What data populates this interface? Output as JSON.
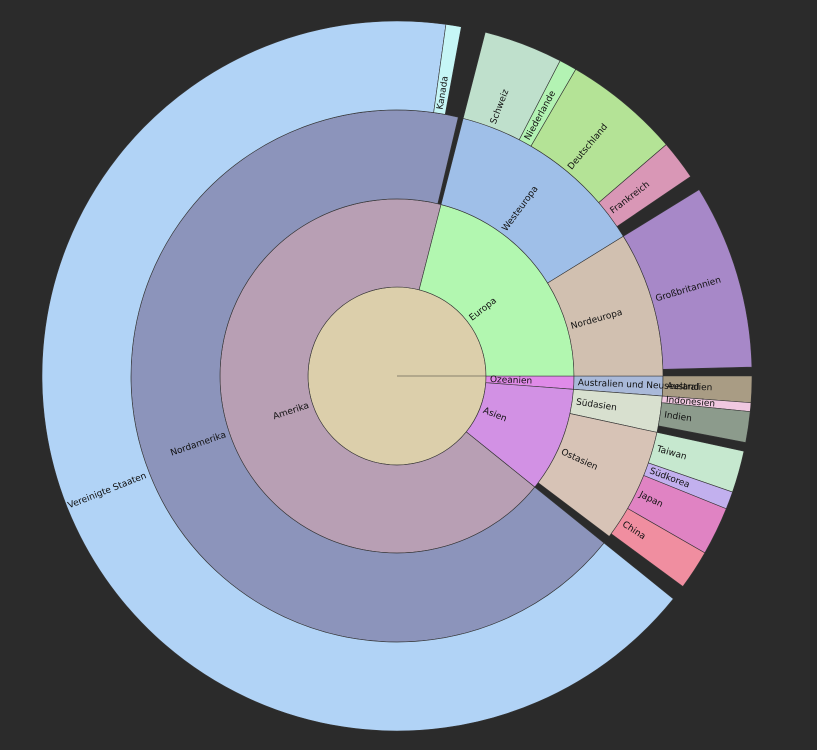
{
  "chart_data": {
    "type": "sunburst",
    "nodes": [
      {
        "name": "Ozeanien",
        "value": 1.2,
        "color": "#e08be8",
        "children": [
          {
            "name": "Australien und Neuseeland",
            "value": 1.2,
            "color": "#a9b9d9",
            "children": [
              {
                "name": "Australien",
                "value": 1.2,
                "color": "#a99c84"
              }
            ]
          }
        ]
      },
      {
        "name": "Asien",
        "value": 9.6,
        "color": "#d291e4",
        "children": [
          {
            "name": "Südasien",
            "value": 2.2,
            "color": "#d8e0cf",
            "children": [
              {
                "name": "Indonesien",
                "value": 0.4,
                "color": "#f0c8e0"
              },
              {
                "name": "Indien",
                "value": 1.4,
                "color": "#8c9b8c"
              }
            ]
          },
          {
            "name": "Ostasien",
            "value": 6.9,
            "color": "#d7c3b6",
            "children": [
              {
                "name": "Taiwan",
                "value": 1.9,
                "color": "#c6e8cf"
              },
              {
                "name": "Südkorea",
                "value": 0.8,
                "color": "#c2b0ee"
              },
              {
                "name": "Japan",
                "value": 2.2,
                "color": "#e083c3"
              },
              {
                "name": "China",
                "value": 1.8,
                "color": "#f08ea0"
              }
            ]
          }
        ]
      },
      {
        "name": "Amerika",
        "value": 68.2,
        "color": "#b89fb4",
        "children": [
          {
            "name": "Nordamerika",
            "value": 67.9,
            "color": "#8c94bb",
            "children": [
              {
                "name": "Vereinigte Staaten",
                "value": 66.4,
                "color": "#b1d3f6"
              },
              {
                "name": "Kanada",
                "value": 0.7,
                "color": "#c6f6f6"
              }
            ]
          }
        ]
      },
      {
        "name": "Europa",
        "value": 21.0,
        "color": "#b2f7b0",
        "children": [
          {
            "name": "Westeuropa",
            "value": 12.2,
            "color": "#9fbfe8",
            "children": [
              {
                "name": "Schweiz",
                "value": 3.6,
                "color": "#bfe0cc"
              },
              {
                "name": "Niederlande",
                "value": 0.8,
                "color": "#b3f3b3"
              },
              {
                "name": "Deutschland",
                "value": 5.3,
                "color": "#b4e396"
              },
              {
                "name": "Frankreich",
                "value": 1.8,
                "color": "#d997b6"
              }
            ]
          },
          {
            "name": "Nordeuropa",
            "value": 8.8,
            "color": "#d1c0b0",
            "children": [
              {
                "name": "Großbritannien",
                "value": 8.4,
                "color": "#a788c8"
              }
            ]
          }
        ]
      }
    ]
  }
}
